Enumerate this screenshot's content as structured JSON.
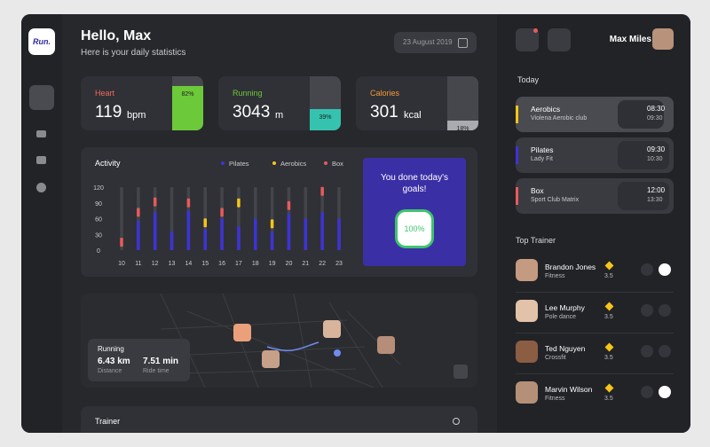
{
  "sidebar": {
    "logo": "Run."
  },
  "header": {
    "greeting": "Hello, Max",
    "subtitle": "Here is your daily statistics",
    "date": "23 August 2019"
  },
  "stats": [
    {
      "label": "Heart",
      "value": 119,
      "unit": "bpm",
      "percent": 82,
      "percent_label": "82%",
      "color": "#6cc93a",
      "label_color": "#f06a5c"
    },
    {
      "label": "Running",
      "value": 3043,
      "unit": "m",
      "percent": 39,
      "percent_label": "39%",
      "color": "#35c3b0",
      "label_color": "#6cc93a"
    },
    {
      "label": "Calories",
      "value": 301,
      "unit": "kcal",
      "percent": 18,
      "percent_label": "18%",
      "color": "#a9abb1",
      "label_color": "#f59a3a"
    }
  ],
  "chart_data": {
    "type": "bar",
    "title": "Activity",
    "categories": [
      "10",
      "11",
      "12",
      "13",
      "14",
      "15",
      "16",
      "17",
      "18",
      "19",
      "20",
      "21",
      "22",
      "23"
    ],
    "series": [
      {
        "name": "Pilates",
        "color": "#3d33d6",
        "values": [
          null,
          55,
          72,
          35,
          75,
          40,
          60,
          45,
          60,
          35,
          70,
          60,
          72,
          60
        ]
      },
      {
        "name": "Aerobics",
        "color": "#f5c518",
        "values": [
          null,
          null,
          null,
          null,
          null,
          52,
          null,
          90,
          null,
          50,
          null,
          null,
          null,
          null
        ]
      },
      {
        "name": "Box",
        "color": "#e65b5b",
        "values": [
          15,
          72,
          92,
          null,
          90,
          null,
          72,
          null,
          null,
          null,
          85,
          null,
          112,
          null
        ]
      }
    ],
    "ylim": [
      0,
      120
    ],
    "yticks": [
      0,
      30,
      60,
      90,
      120
    ]
  },
  "goal": {
    "text": "You done today's goals!",
    "percent": "100%"
  },
  "map": {
    "title": "Running",
    "distance": "6.43 km",
    "distance_label": "Distance",
    "time": "7.51 min",
    "time_label": "Ride time"
  },
  "trainer_section": {
    "title": "Trainer"
  },
  "user": {
    "name": "Max Miles"
  },
  "today": {
    "title": "Today",
    "items": [
      {
        "name": "Aerobics",
        "place": "Violena Aerobic club",
        "start": "08:30",
        "end": "09:30",
        "color": "#f5c518"
      },
      {
        "name": "Pilates",
        "place": "Lady Fit",
        "start": "09:30",
        "end": "10:30",
        "color": "#3d33d6"
      },
      {
        "name": "Box",
        "place": "Sport Club Matrix",
        "start": "12:00",
        "end": "13:30",
        "color": "#e65b5b"
      }
    ]
  },
  "top_trainers": {
    "title": "Top Trainer",
    "items": [
      {
        "name": "Brandon Jones",
        "specialty": "Fitness",
        "rating": "3.5"
      },
      {
        "name": "Lee Murphy",
        "specialty": "Pole dance",
        "rating": "3.5"
      },
      {
        "name": "Ted Nguyen",
        "specialty": "Crossfit",
        "rating": "3.5"
      },
      {
        "name": "Marvin Wilson",
        "specialty": "Fitness",
        "rating": "3.5"
      }
    ]
  }
}
